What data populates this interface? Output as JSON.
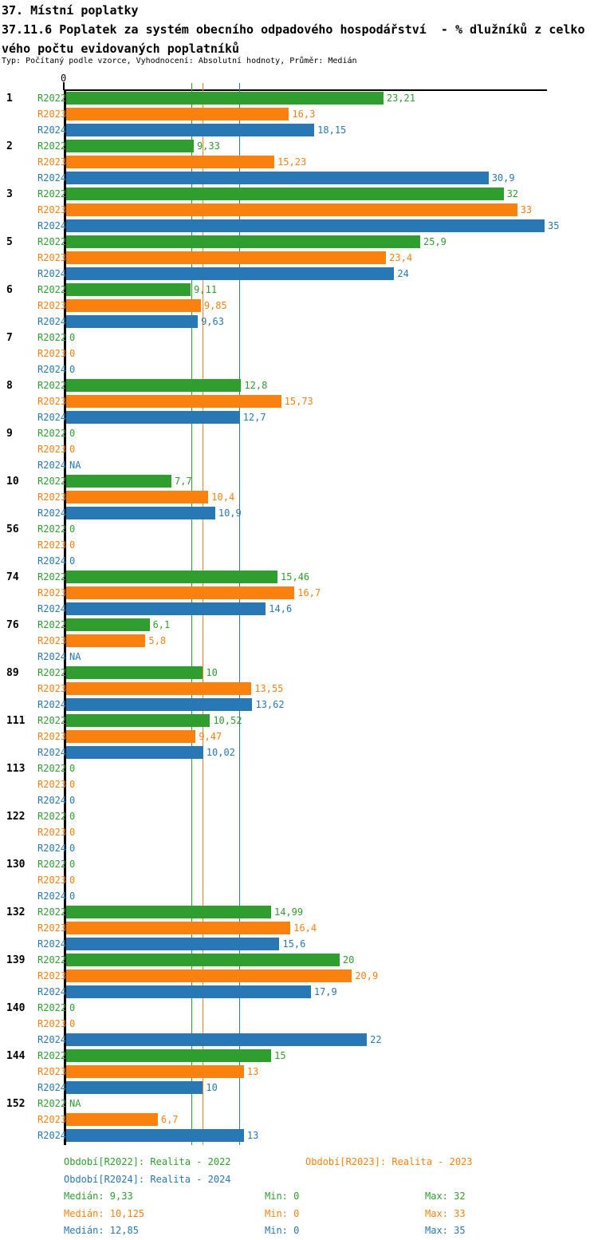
{
  "header": {
    "title": "37. Místní poplatky",
    "subtitle_line1": "37.11.6 Poplatek za systém obecního odpadového hospodářství  - % dlužníků z celko",
    "subtitle_line2": "vého počtu evidovaných poplatníků",
    "meta": "Typ: Počítaný podle vzorce, Vyhodnocení: Absolutní hodnoty, Průměr: Medián"
  },
  "chart_data": {
    "type": "bar",
    "orientation": "horizontal",
    "title": "37.11.6 Poplatek za systém obecního odpadového hospodářství - % dlužníků z celkového počtu evidovaných poplatníků",
    "axis": {
      "zero_label": "0",
      "xmax": 35,
      "grid": false
    },
    "series_names": [
      "R2022",
      "R2023",
      "R2024"
    ],
    "series_colors": [
      "#2e9e2e",
      "#fb810f",
      "#2778b4"
    ],
    "medians": [
      9.33,
      10.125,
      12.85
    ],
    "categories": [
      "1",
      "2",
      "3",
      "5",
      "6",
      "7",
      "8",
      "9",
      "10",
      "56",
      "74",
      "76",
      "89",
      "111",
      "113",
      "122",
      "130",
      "132",
      "139",
      "140",
      "144",
      "152"
    ],
    "groups": [
      {
        "category": "1",
        "values": [
          23.21,
          16.3,
          18.15
        ],
        "labels": [
          "23,21",
          "16,3",
          "18,15"
        ]
      },
      {
        "category": "2",
        "values": [
          9.33,
          15.23,
          30.9
        ],
        "labels": [
          "9,33",
          "15,23",
          "30,9"
        ]
      },
      {
        "category": "3",
        "values": [
          32,
          33,
          35
        ],
        "labels": [
          "32",
          "33",
          "35"
        ]
      },
      {
        "category": "5",
        "values": [
          25.9,
          23.4,
          24
        ],
        "labels": [
          "25,9",
          "23,4",
          "24"
        ]
      },
      {
        "category": "6",
        "values": [
          9.11,
          9.85,
          9.63
        ],
        "labels": [
          "9,11",
          "9,85",
          "9,63"
        ]
      },
      {
        "category": "7",
        "values": [
          0,
          0,
          0
        ],
        "labels": [
          "0",
          "0",
          "0"
        ]
      },
      {
        "category": "8",
        "values": [
          12.8,
          15.73,
          12.7
        ],
        "labels": [
          "12,8",
          "15,73",
          "12,7"
        ]
      },
      {
        "category": "9",
        "values": [
          0,
          0,
          null
        ],
        "labels": [
          "0",
          "0",
          "NA"
        ]
      },
      {
        "category": "10",
        "values": [
          7.7,
          10.4,
          10.9
        ],
        "labels": [
          "7,7",
          "10,4",
          "10,9"
        ]
      },
      {
        "category": "56",
        "values": [
          0,
          0,
          0
        ],
        "labels": [
          "0",
          "0",
          "0"
        ]
      },
      {
        "category": "74",
        "values": [
          15.46,
          16.7,
          14.6
        ],
        "labels": [
          "15,46",
          "16,7",
          "14,6"
        ]
      },
      {
        "category": "76",
        "values": [
          6.1,
          5.8,
          null
        ],
        "labels": [
          "6,1",
          "5,8",
          "NA"
        ]
      },
      {
        "category": "89",
        "values": [
          10,
          13.55,
          13.62
        ],
        "labels": [
          "10",
          "13,55",
          "13,62"
        ]
      },
      {
        "category": "111",
        "values": [
          10.52,
          9.47,
          10.02
        ],
        "labels": [
          "10,52",
          "9,47",
          "10,02"
        ]
      },
      {
        "category": "113",
        "values": [
          0,
          0,
          0
        ],
        "labels": [
          "0",
          "0",
          "0"
        ]
      },
      {
        "category": "122",
        "values": [
          0,
          0,
          0
        ],
        "labels": [
          "0",
          "0",
          "0"
        ]
      },
      {
        "category": "130",
        "values": [
          0,
          0,
          0
        ],
        "labels": [
          "0",
          "0",
          "0"
        ]
      },
      {
        "category": "132",
        "values": [
          14.99,
          16.4,
          15.6
        ],
        "labels": [
          "14,99",
          "16,4",
          "15,6"
        ]
      },
      {
        "category": "139",
        "values": [
          20,
          20.9,
          17.9
        ],
        "labels": [
          "20",
          "20,9",
          "17,9"
        ]
      },
      {
        "category": "140",
        "values": [
          0,
          0,
          22
        ],
        "labels": [
          "0",
          "0",
          "22"
        ]
      },
      {
        "category": "144",
        "values": [
          15,
          13,
          10
        ],
        "labels": [
          "15",
          "13",
          "10"
        ]
      },
      {
        "category": "152",
        "values": [
          null,
          6.7,
          13
        ],
        "labels": [
          "NA",
          "6,7",
          "13"
        ]
      }
    ]
  },
  "legend": {
    "items": [
      {
        "label": "Období[R2022]: Realita - 2022",
        "color": "#2e9e2e"
      },
      {
        "label": "Období[R2023]: Realita - 2023",
        "color": "#fb810f"
      },
      {
        "label": "Období[R2024]: Realita - 2024",
        "color": "#2778b4"
      }
    ]
  },
  "stats": {
    "rows": [
      {
        "median": "Medián: 9,33",
        "min": "Min: 0",
        "max": "Max: 32",
        "color": "#2e9e2e"
      },
      {
        "median": "Medián: 10,125",
        "min": "Min: 0",
        "max": "Max: 33",
        "color": "#fb810f"
      },
      {
        "median": "Medián: 12,85",
        "min": "Min: 0",
        "max": "Max: 35",
        "color": "#2778b4"
      }
    ]
  }
}
